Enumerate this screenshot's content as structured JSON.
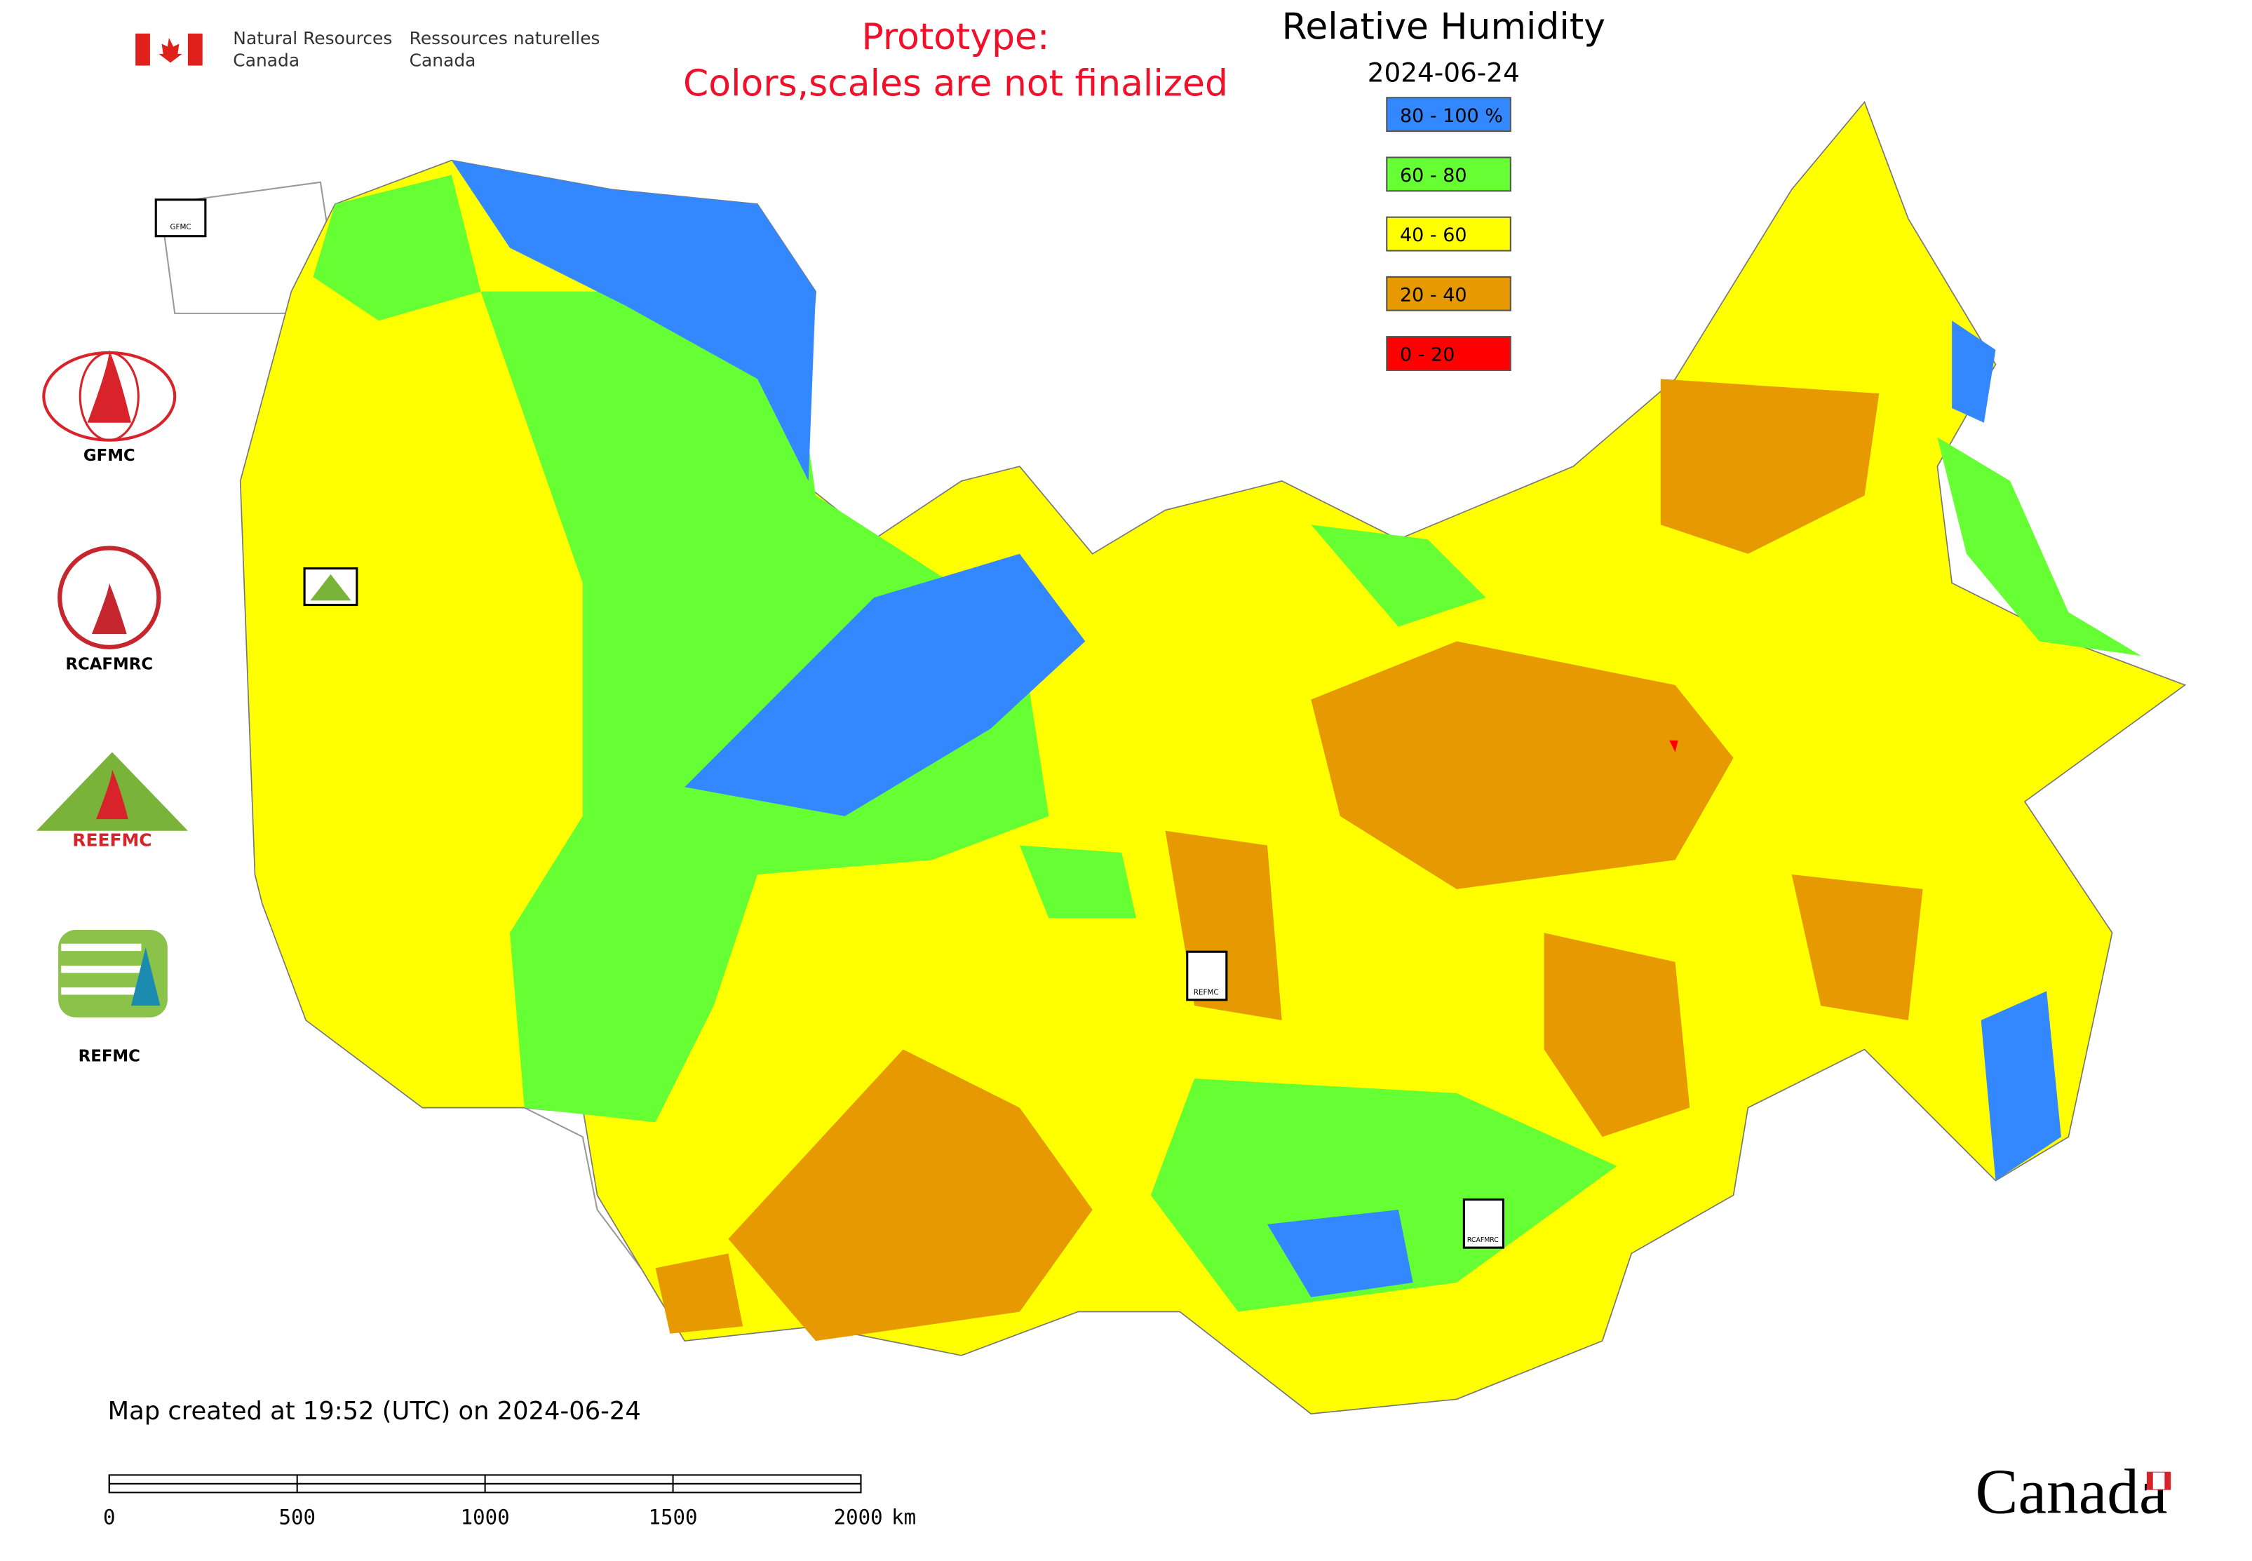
{
  "agency": {
    "en_line1": "Natural Resources",
    "en_line2": "Canada",
    "fr_line1": "Ressources naturelles",
    "fr_line2": "Canada"
  },
  "notice": {
    "line1": "Prototype:",
    "line2": "Colors,scales are not finalized"
  },
  "map": {
    "title": "Relative Humidity",
    "date": "2024-06-24"
  },
  "legend": {
    "items": [
      {
        "label": "80 - 100 %",
        "color": "#3388ff"
      },
      {
        "label": "60 - 80",
        "color": "#66ff33"
      },
      {
        "label": "40 - 60",
        "color": "#ffff00"
      },
      {
        "label": "20 - 40",
        "color": "#e69900"
      },
      {
        "label": "0 - 20",
        "color": "#ff0000"
      }
    ]
  },
  "centers": {
    "gfmc": "GFMC",
    "rcafmrc": "RCAFMRC",
    "reefmc": "REEFMC",
    "refmc": "REFMC"
  },
  "markers": {
    "gfmc": "GFMC",
    "refmc": "REFMC",
    "rcafmrc": "RCAFMRC"
  },
  "footer": {
    "created": "Map created at 19:52 (UTC) on 2024-06-24",
    "scale_ticks": [
      0,
      500,
      1000,
      1500,
      2000
    ],
    "scale_unit": "km",
    "wordmark": "Canada"
  }
}
